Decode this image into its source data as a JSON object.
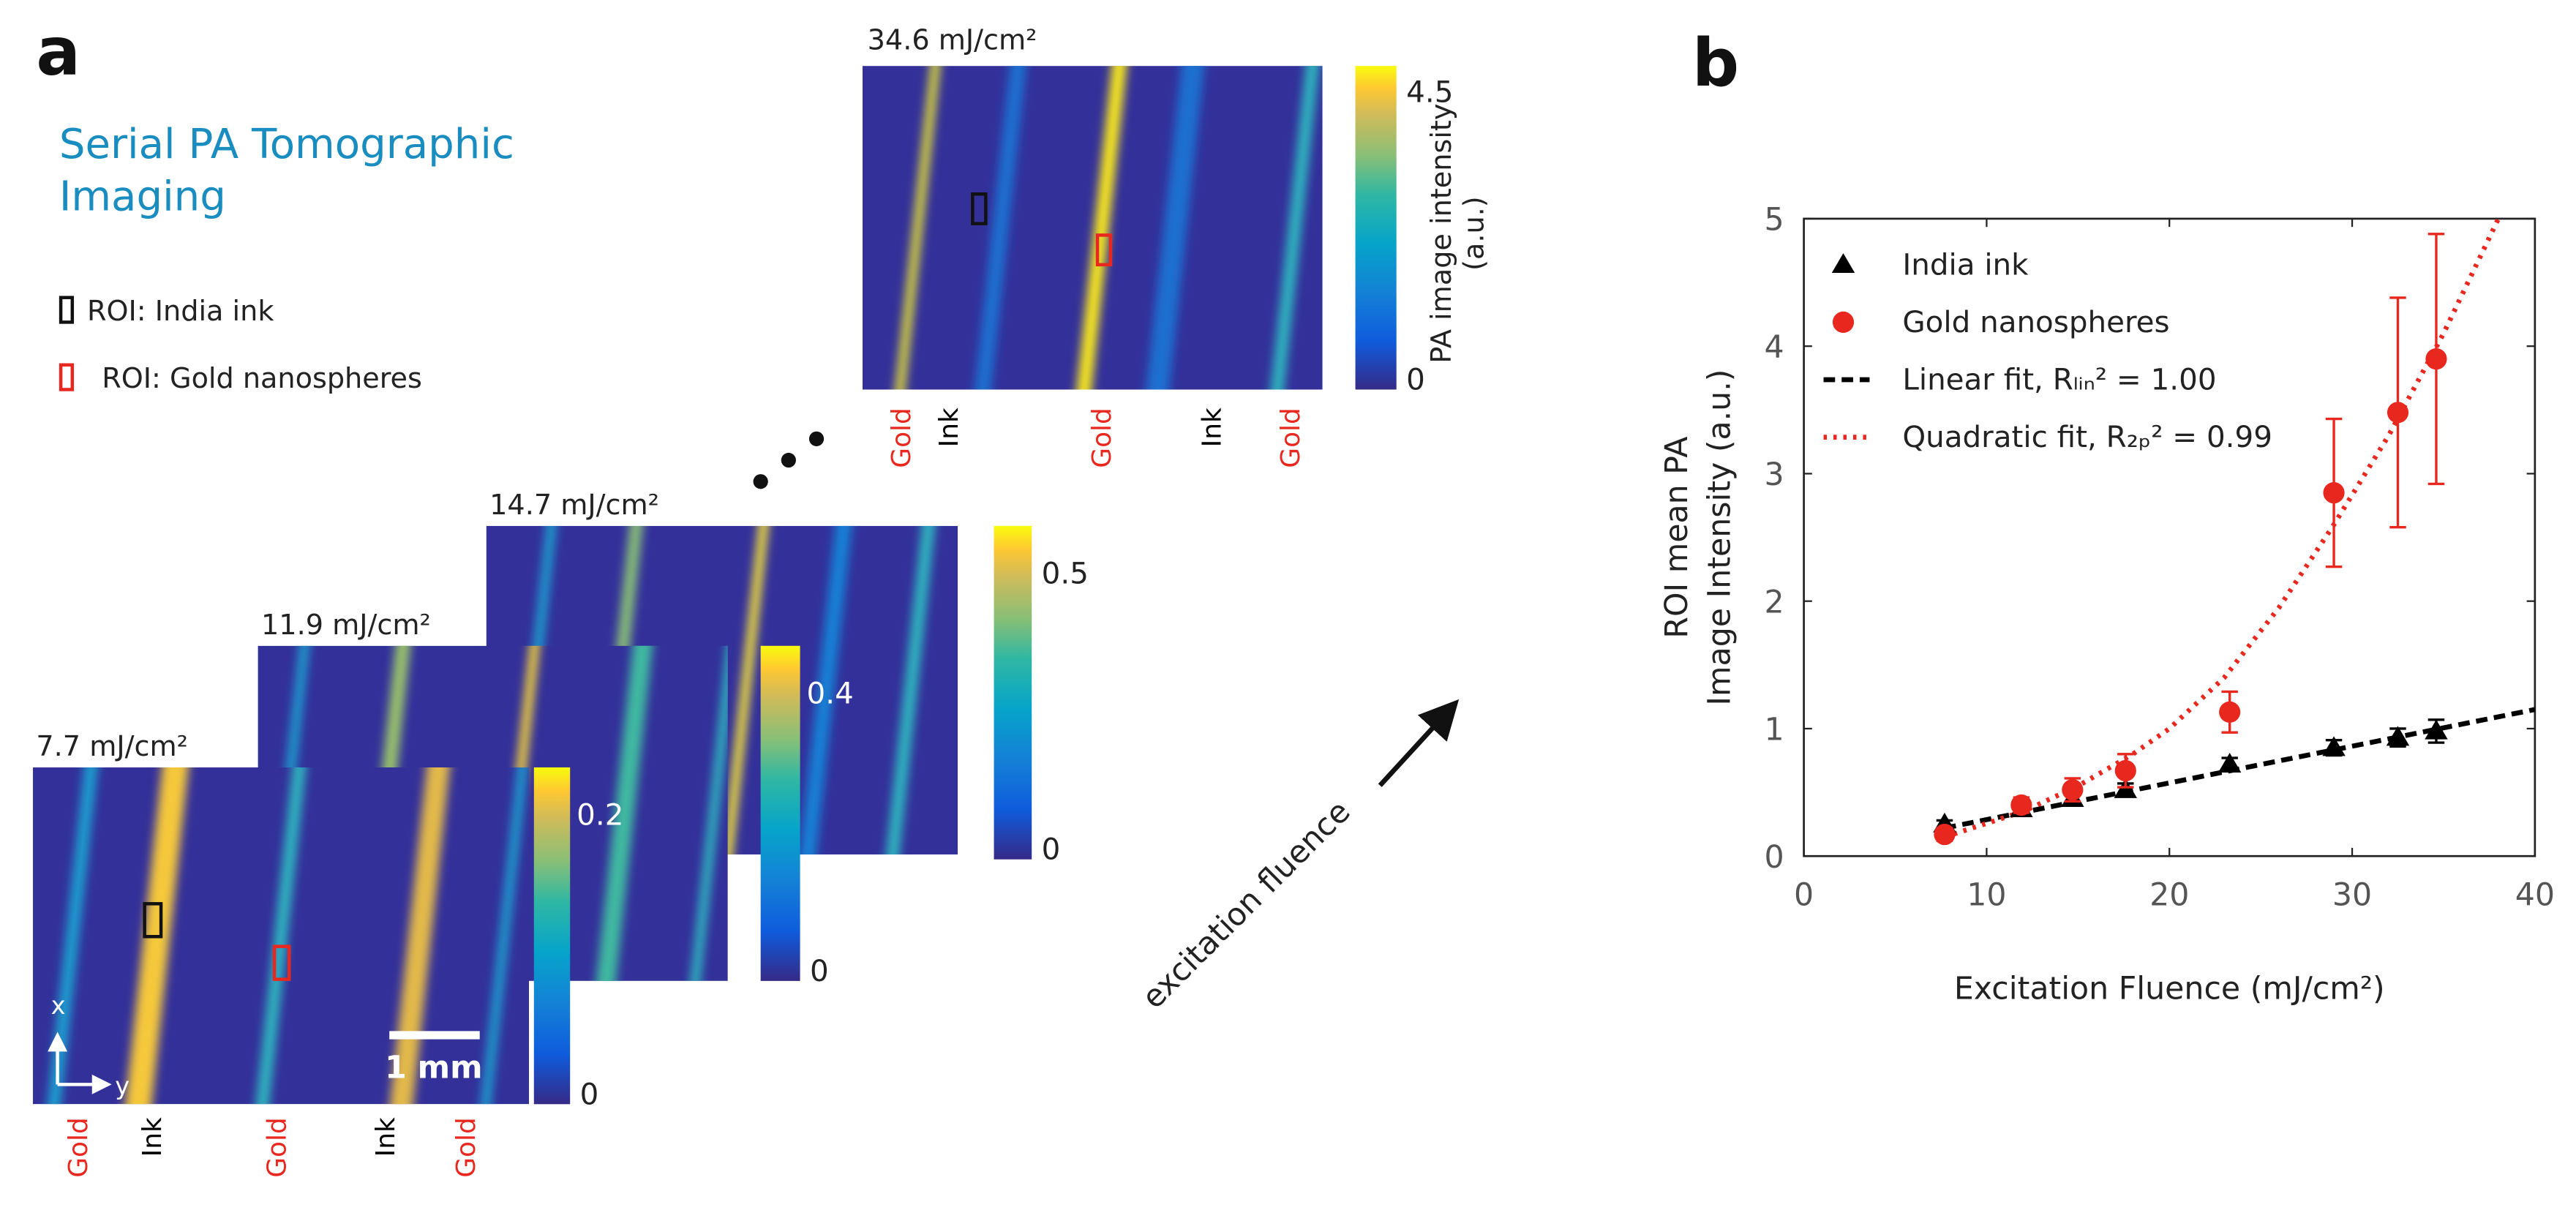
{
  "panel_a": {
    "label": "a",
    "title_lines": [
      "Serial PA Tomographic",
      "Imaging"
    ],
    "roi_legend": [
      "ROI: India ink",
      "ROI: Gold nanospheres"
    ],
    "images": [
      {
        "fluence": "34.6 mJ/cm²",
        "colorbar_ticks": [
          4.5,
          0
        ],
        "lane_labels": [
          "Gold",
          "Ink",
          "Gold",
          "Ink",
          "Gold"
        ],
        "lane_colors": [
          "#e8281e",
          "#000000",
          "#e8281e",
          "#000000",
          "#e8281e"
        ]
      },
      {
        "fluence": "14.7 mJ/cm²",
        "colorbar_ticks": [
          0.5,
          0
        ]
      },
      {
        "fluence": "11.9 mJ/cm²",
        "colorbar_ticks": [
          0.4,
          0
        ]
      },
      {
        "fluence": "7.7 mJ/cm²",
        "colorbar_ticks": [
          0.2,
          0
        ],
        "lane_labels": [
          "Gold",
          "Ink",
          "Gold",
          "Ink",
          "Gold"
        ],
        "lane_colors": [
          "#e8281e",
          "#000000",
          "#e8281e",
          "#000000",
          "#e8281e"
        ]
      }
    ],
    "colorbar_label": [
      "PA image intensity",
      "(a.u.)"
    ],
    "axis_x": "x",
    "axis_y": "y",
    "scale_bar": "1 mm",
    "arrow_label": "excitation fluence"
  },
  "chart_data": {
    "type": "scatter",
    "panel_label": "b",
    "xlabel": "Excitation Fluence (mJ/cm²)",
    "ylabel": [
      "ROI mean PA",
      "Image Intensity (a.u.)"
    ],
    "xlim": [
      0,
      40
    ],
    "ylim": [
      0,
      5
    ],
    "xticks": [
      0,
      10,
      20,
      30,
      40
    ],
    "yticks": [
      0,
      1,
      2,
      3,
      4,
      5
    ],
    "legend": "upper left",
    "series": [
      {
        "name": "India ink",
        "color": "#000000",
        "marker": "triangle",
        "x": [
          7.7,
          11.9,
          14.7,
          17.6,
          23.3,
          29,
          32.5,
          34.6
        ],
        "values": [
          0.25,
          0.37,
          0.45,
          0.52,
          0.72,
          0.85,
          0.93,
          0.98
        ],
        "errors": [
          0.03,
          0.03,
          0.04,
          0.05,
          0.05,
          0.06,
          0.07,
          0.09
        ]
      },
      {
        "name": "Gold nanospheres",
        "color": "#e8281e",
        "marker": "circle",
        "x": [
          7.7,
          11.9,
          14.7,
          17.6,
          23.3,
          29,
          32.5,
          34.6
        ],
        "values": [
          0.17,
          0.4,
          0.52,
          0.67,
          1.13,
          2.85,
          3.48,
          3.9
        ],
        "errors": [
          0.05,
          0.06,
          0.09,
          0.13,
          0.16,
          0.58,
          0.9,
          0.98
        ]
      },
      {
        "name": "Linear fit, Rₗᵢₙ² = 1.00",
        "color": "#000000",
        "line_style": "dashed",
        "x": [
          7.7,
          40
        ],
        "values": [
          0.22,
          1.15
        ]
      },
      {
        "name": "Quadratic fit, R₂ₚ² = 0.99",
        "color": "#e8281e",
        "line_style": "dotted",
        "x": [
          7.7,
          12,
          15,
          18,
          20,
          23,
          26,
          29,
          32,
          35,
          38
        ],
        "values": [
          0.15,
          0.35,
          0.55,
          0.8,
          1.0,
          1.4,
          1.95,
          2.6,
          3.3,
          4.1,
          5.0
        ]
      }
    ]
  }
}
